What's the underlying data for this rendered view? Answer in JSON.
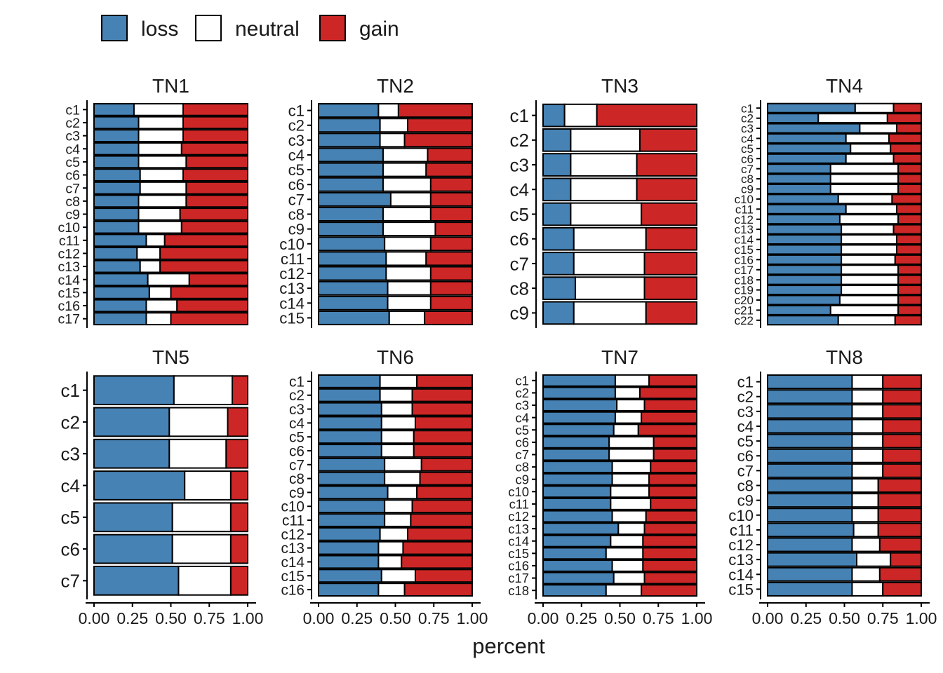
{
  "legend": {
    "items": [
      {
        "label": "loss",
        "color": "#4682b4"
      },
      {
        "label": "neutral",
        "color": "#ffffff"
      },
      {
        "label": "gain",
        "color": "#cd2626"
      }
    ]
  },
  "xlabel": "percent",
  "x_ticks": [
    "0.00",
    "0.25",
    "0.50",
    "0.75",
    "1.00"
  ],
  "chart_data": {
    "type": "bar",
    "orientation": "horizontal",
    "stacked": true,
    "xlim": [
      0,
      1
    ],
    "series_names": [
      "loss",
      "neutral",
      "gain"
    ],
    "panels": [
      {
        "title": "TN1",
        "rows": [
          {
            "label": "c1",
            "loss": 0.26,
            "neutral": 0.32,
            "gain": 0.42
          },
          {
            "label": "c2",
            "loss": 0.29,
            "neutral": 0.29,
            "gain": 0.42
          },
          {
            "label": "c3",
            "loss": 0.29,
            "neutral": 0.29,
            "gain": 0.42
          },
          {
            "label": "c4",
            "loss": 0.29,
            "neutral": 0.28,
            "gain": 0.43
          },
          {
            "label": "c5",
            "loss": 0.29,
            "neutral": 0.31,
            "gain": 0.4
          },
          {
            "label": "c6",
            "loss": 0.3,
            "neutral": 0.28,
            "gain": 0.42
          },
          {
            "label": "c7",
            "loss": 0.3,
            "neutral": 0.3,
            "gain": 0.4
          },
          {
            "label": "c8",
            "loss": 0.29,
            "neutral": 0.31,
            "gain": 0.4
          },
          {
            "label": "c9",
            "loss": 0.29,
            "neutral": 0.27,
            "gain": 0.44
          },
          {
            "label": "c10",
            "loss": 0.29,
            "neutral": 0.28,
            "gain": 0.43
          },
          {
            "label": "c11",
            "loss": 0.34,
            "neutral": 0.12,
            "gain": 0.54
          },
          {
            "label": "c12",
            "loss": 0.28,
            "neutral": 0.15,
            "gain": 0.57
          },
          {
            "label": "c13",
            "loss": 0.3,
            "neutral": 0.13,
            "gain": 0.57
          },
          {
            "label": "c14",
            "loss": 0.35,
            "neutral": 0.27,
            "gain": 0.38
          },
          {
            "label": "c15",
            "loss": 0.36,
            "neutral": 0.14,
            "gain": 0.5
          },
          {
            "label": "c16",
            "loss": 0.34,
            "neutral": 0.2,
            "gain": 0.46
          },
          {
            "label": "c17",
            "loss": 0.34,
            "neutral": 0.16,
            "gain": 0.5
          }
        ]
      },
      {
        "title": "TN2",
        "rows": [
          {
            "label": "c1",
            "loss": 0.39,
            "neutral": 0.13,
            "gain": 0.48
          },
          {
            "label": "c2",
            "loss": 0.4,
            "neutral": 0.18,
            "gain": 0.42
          },
          {
            "label": "c3",
            "loss": 0.4,
            "neutral": 0.16,
            "gain": 0.44
          },
          {
            "label": "c4",
            "loss": 0.42,
            "neutral": 0.29,
            "gain": 0.29
          },
          {
            "label": "c5",
            "loss": 0.42,
            "neutral": 0.28,
            "gain": 0.3
          },
          {
            "label": "c6",
            "loss": 0.42,
            "neutral": 0.31,
            "gain": 0.27
          },
          {
            "label": "c7",
            "loss": 0.47,
            "neutral": 0.26,
            "gain": 0.27
          },
          {
            "label": "c8",
            "loss": 0.42,
            "neutral": 0.31,
            "gain": 0.27
          },
          {
            "label": "c9",
            "loss": 0.42,
            "neutral": 0.34,
            "gain": 0.24
          },
          {
            "label": "c10",
            "loss": 0.43,
            "neutral": 0.3,
            "gain": 0.27
          },
          {
            "label": "c11",
            "loss": 0.44,
            "neutral": 0.26,
            "gain": 0.3
          },
          {
            "label": "c12",
            "loss": 0.44,
            "neutral": 0.29,
            "gain": 0.27
          },
          {
            "label": "c13",
            "loss": 0.45,
            "neutral": 0.28,
            "gain": 0.27
          },
          {
            "label": "c14",
            "loss": 0.45,
            "neutral": 0.28,
            "gain": 0.27
          },
          {
            "label": "c15",
            "loss": 0.46,
            "neutral": 0.23,
            "gain": 0.31
          }
        ]
      },
      {
        "title": "TN3",
        "rows": [
          {
            "label": "c1",
            "loss": 0.14,
            "neutral": 0.21,
            "gain": 0.65
          },
          {
            "label": "c2",
            "loss": 0.18,
            "neutral": 0.45,
            "gain": 0.37
          },
          {
            "label": "c3",
            "loss": 0.18,
            "neutral": 0.43,
            "gain": 0.39
          },
          {
            "label": "c4",
            "loss": 0.18,
            "neutral": 0.43,
            "gain": 0.39
          },
          {
            "label": "c5",
            "loss": 0.18,
            "neutral": 0.46,
            "gain": 0.36
          },
          {
            "label": "c6",
            "loss": 0.2,
            "neutral": 0.47,
            "gain": 0.33
          },
          {
            "label": "c7",
            "loss": 0.2,
            "neutral": 0.46,
            "gain": 0.34
          },
          {
            "label": "c8",
            "loss": 0.21,
            "neutral": 0.45,
            "gain": 0.34
          },
          {
            "label": "c9",
            "loss": 0.2,
            "neutral": 0.47,
            "gain": 0.33
          }
        ]
      },
      {
        "title": "TN4",
        "rows": [
          {
            "label": "c1",
            "loss": 0.57,
            "neutral": 0.25,
            "gain": 0.18
          },
          {
            "label": "c2",
            "loss": 0.33,
            "neutral": 0.45,
            "gain": 0.22
          },
          {
            "label": "c3",
            "loss": 0.6,
            "neutral": 0.24,
            "gain": 0.16
          },
          {
            "label": "c4",
            "loss": 0.51,
            "neutral": 0.28,
            "gain": 0.21
          },
          {
            "label": "c5",
            "loss": 0.54,
            "neutral": 0.26,
            "gain": 0.2
          },
          {
            "label": "c6",
            "loss": 0.51,
            "neutral": 0.31,
            "gain": 0.18
          },
          {
            "label": "c7",
            "loss": 0.41,
            "neutral": 0.44,
            "gain": 0.15
          },
          {
            "label": "c8",
            "loss": 0.41,
            "neutral": 0.44,
            "gain": 0.15
          },
          {
            "label": "c9",
            "loss": 0.41,
            "neutral": 0.44,
            "gain": 0.15
          },
          {
            "label": "c10",
            "loss": 0.46,
            "neutral": 0.35,
            "gain": 0.19
          },
          {
            "label": "c11",
            "loss": 0.51,
            "neutral": 0.33,
            "gain": 0.16
          },
          {
            "label": "c12",
            "loss": 0.47,
            "neutral": 0.38,
            "gain": 0.15
          },
          {
            "label": "c13",
            "loss": 0.48,
            "neutral": 0.34,
            "gain": 0.18
          },
          {
            "label": "c14",
            "loss": 0.48,
            "neutral": 0.36,
            "gain": 0.16
          },
          {
            "label": "c15",
            "loss": 0.48,
            "neutral": 0.36,
            "gain": 0.16
          },
          {
            "label": "c16",
            "loss": 0.48,
            "neutral": 0.35,
            "gain": 0.17
          },
          {
            "label": "c17",
            "loss": 0.48,
            "neutral": 0.37,
            "gain": 0.15
          },
          {
            "label": "c18",
            "loss": 0.48,
            "neutral": 0.37,
            "gain": 0.15
          },
          {
            "label": "c19",
            "loss": 0.48,
            "neutral": 0.37,
            "gain": 0.15
          },
          {
            "label": "c20",
            "loss": 0.47,
            "neutral": 0.38,
            "gain": 0.15
          },
          {
            "label": "c21",
            "loss": 0.41,
            "neutral": 0.44,
            "gain": 0.15
          },
          {
            "label": "c22",
            "loss": 0.46,
            "neutral": 0.37,
            "gain": 0.17
          }
        ]
      },
      {
        "title": "TN5",
        "rows": [
          {
            "label": "c1",
            "loss": 0.52,
            "neutral": 0.38,
            "gain": 0.1
          },
          {
            "label": "c2",
            "loss": 0.49,
            "neutral": 0.38,
            "gain": 0.13
          },
          {
            "label": "c3",
            "loss": 0.49,
            "neutral": 0.37,
            "gain": 0.14
          },
          {
            "label": "c4",
            "loss": 0.59,
            "neutral": 0.3,
            "gain": 0.11
          },
          {
            "label": "c5",
            "loss": 0.51,
            "neutral": 0.38,
            "gain": 0.11
          },
          {
            "label": "c6",
            "loss": 0.51,
            "neutral": 0.38,
            "gain": 0.11
          },
          {
            "label": "c7",
            "loss": 0.55,
            "neutral": 0.34,
            "gain": 0.11
          }
        ]
      },
      {
        "title": "TN6",
        "rows": [
          {
            "label": "c1",
            "loss": 0.4,
            "neutral": 0.24,
            "gain": 0.36
          },
          {
            "label": "c2",
            "loss": 0.4,
            "neutral": 0.21,
            "gain": 0.39
          },
          {
            "label": "c3",
            "loss": 0.41,
            "neutral": 0.2,
            "gain": 0.39
          },
          {
            "label": "c4",
            "loss": 0.41,
            "neutral": 0.22,
            "gain": 0.37
          },
          {
            "label": "c5",
            "loss": 0.41,
            "neutral": 0.21,
            "gain": 0.38
          },
          {
            "label": "c6",
            "loss": 0.41,
            "neutral": 0.21,
            "gain": 0.38
          },
          {
            "label": "c7",
            "loss": 0.43,
            "neutral": 0.24,
            "gain": 0.33
          },
          {
            "label": "c8",
            "loss": 0.43,
            "neutral": 0.23,
            "gain": 0.34
          },
          {
            "label": "c9",
            "loss": 0.45,
            "neutral": 0.19,
            "gain": 0.36
          },
          {
            "label": "c10",
            "loss": 0.43,
            "neutral": 0.18,
            "gain": 0.39
          },
          {
            "label": "c11",
            "loss": 0.43,
            "neutral": 0.17,
            "gain": 0.4
          },
          {
            "label": "c12",
            "loss": 0.4,
            "neutral": 0.18,
            "gain": 0.42
          },
          {
            "label": "c13",
            "loss": 0.39,
            "neutral": 0.16,
            "gain": 0.45
          },
          {
            "label": "c14",
            "loss": 0.39,
            "neutral": 0.15,
            "gain": 0.46
          },
          {
            "label": "c15",
            "loss": 0.41,
            "neutral": 0.22,
            "gain": 0.37
          },
          {
            "label": "c16",
            "loss": 0.39,
            "neutral": 0.17,
            "gain": 0.44
          }
        ]
      },
      {
        "title": "TN7",
        "rows": [
          {
            "label": "c1",
            "loss": 0.47,
            "neutral": 0.22,
            "gain": 0.31
          },
          {
            "label": "c2",
            "loss": 0.47,
            "neutral": 0.16,
            "gain": 0.37
          },
          {
            "label": "c3",
            "loss": 0.48,
            "neutral": 0.18,
            "gain": 0.34
          },
          {
            "label": "c4",
            "loss": 0.47,
            "neutral": 0.17,
            "gain": 0.36
          },
          {
            "label": "c5",
            "loss": 0.46,
            "neutral": 0.16,
            "gain": 0.38
          },
          {
            "label": "c6",
            "loss": 0.43,
            "neutral": 0.29,
            "gain": 0.28
          },
          {
            "label": "c7",
            "loss": 0.43,
            "neutral": 0.29,
            "gain": 0.28
          },
          {
            "label": "c8",
            "loss": 0.45,
            "neutral": 0.25,
            "gain": 0.3
          },
          {
            "label": "c9",
            "loss": 0.45,
            "neutral": 0.24,
            "gain": 0.31
          },
          {
            "label": "c10",
            "loss": 0.44,
            "neutral": 0.25,
            "gain": 0.31
          },
          {
            "label": "c11",
            "loss": 0.44,
            "neutral": 0.26,
            "gain": 0.3
          },
          {
            "label": "c12",
            "loss": 0.45,
            "neutral": 0.22,
            "gain": 0.33
          },
          {
            "label": "c13",
            "loss": 0.49,
            "neutral": 0.17,
            "gain": 0.34
          },
          {
            "label": "c14",
            "loss": 0.44,
            "neutral": 0.21,
            "gain": 0.35
          },
          {
            "label": "c15",
            "loss": 0.41,
            "neutral": 0.24,
            "gain": 0.35
          },
          {
            "label": "c16",
            "loss": 0.45,
            "neutral": 0.2,
            "gain": 0.35
          },
          {
            "label": "c17",
            "loss": 0.46,
            "neutral": 0.2,
            "gain": 0.34
          },
          {
            "label": "c18",
            "loss": 0.41,
            "neutral": 0.23,
            "gain": 0.36
          }
        ]
      },
      {
        "title": "TN8",
        "rows": [
          {
            "label": "c1",
            "loss": 0.55,
            "neutral": 0.2,
            "gain": 0.25
          },
          {
            "label": "c2",
            "loss": 0.55,
            "neutral": 0.2,
            "gain": 0.25
          },
          {
            "label": "c3",
            "loss": 0.55,
            "neutral": 0.2,
            "gain": 0.25
          },
          {
            "label": "c4",
            "loss": 0.55,
            "neutral": 0.2,
            "gain": 0.25
          },
          {
            "label": "c5",
            "loss": 0.55,
            "neutral": 0.2,
            "gain": 0.25
          },
          {
            "label": "c6",
            "loss": 0.55,
            "neutral": 0.2,
            "gain": 0.25
          },
          {
            "label": "c7",
            "loss": 0.55,
            "neutral": 0.2,
            "gain": 0.25
          },
          {
            "label": "c8",
            "loss": 0.55,
            "neutral": 0.17,
            "gain": 0.28
          },
          {
            "label": "c9",
            "loss": 0.55,
            "neutral": 0.17,
            "gain": 0.28
          },
          {
            "label": "c10",
            "loss": 0.55,
            "neutral": 0.17,
            "gain": 0.28
          },
          {
            "label": "c11",
            "loss": 0.56,
            "neutral": 0.16,
            "gain": 0.28
          },
          {
            "label": "c12",
            "loss": 0.55,
            "neutral": 0.18,
            "gain": 0.27
          },
          {
            "label": "c13",
            "loss": 0.58,
            "neutral": 0.22,
            "gain": 0.2
          },
          {
            "label": "c14",
            "loss": 0.55,
            "neutral": 0.18,
            "gain": 0.27
          },
          {
            "label": "c15",
            "loss": 0.55,
            "neutral": 0.2,
            "gain": 0.25
          }
        ]
      }
    ]
  }
}
